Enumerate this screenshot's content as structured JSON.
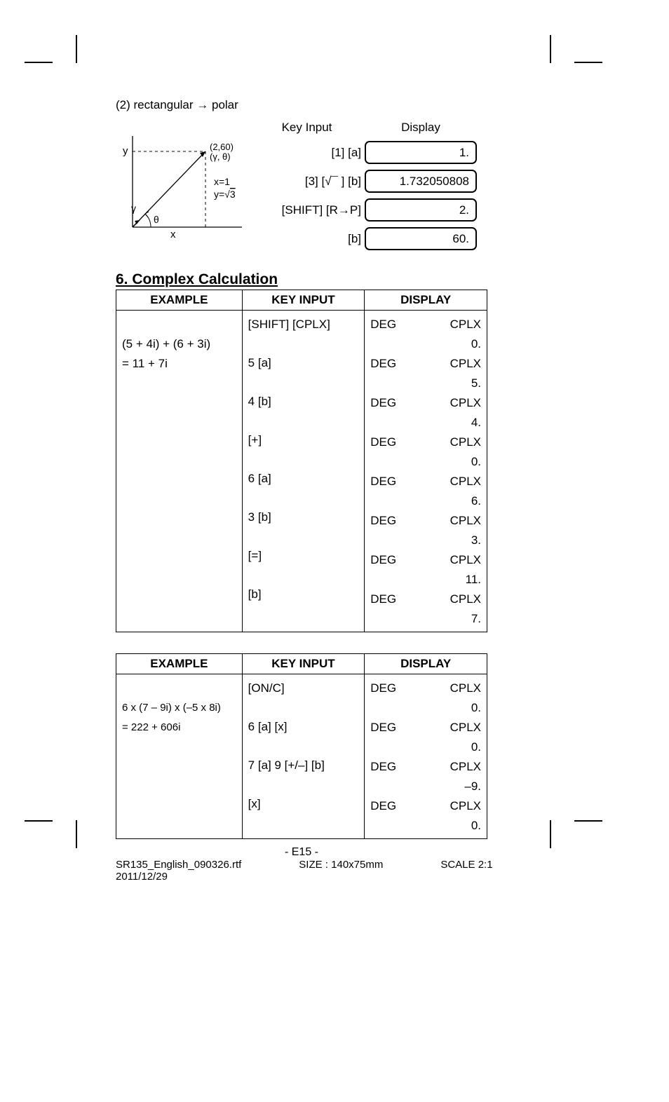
{
  "caption": "(2) rectangular → polar",
  "polar": {
    "key_input_header": "Key Input",
    "display_header": "Display",
    "rows": [
      {
        "key": "[1] [a]",
        "display": "1."
      },
      {
        "key": "[3] [√¯ ] [b]",
        "display": "1.732050808"
      },
      {
        "key": "[SHIFT] [R→P]",
        "display": "2."
      },
      {
        "key": "[b]",
        "display": "60."
      }
    ],
    "diagram": {
      "y_label": "y",
      "x_label": "x",
      "point_label": "(2,60)",
      "point_sub": "(γ, θ)",
      "x_eq": "x=1",
      "y_eq": "y=√3̄",
      "gamma": "γ",
      "theta": "θ"
    }
  },
  "section_title": "6. Complex Calculation",
  "table1": {
    "headers": [
      "EXAMPLE",
      "KEY   INPUT",
      "DISPLAY"
    ],
    "example_lines": [
      "(5 + 4i) + (6 + 3i)",
      "= 11 + 7i"
    ],
    "rows": [
      {
        "key": "[SHIFT] [CPLX]",
        "deg": "DEG",
        "cplx": "CPLX",
        "val": "0."
      },
      {
        "key": "5 [a]",
        "deg": "DEG",
        "cplx": "CPLX",
        "val": "5."
      },
      {
        "key": "4 [b]",
        "deg": "DEG",
        "cplx": "CPLX",
        "val": "4."
      },
      {
        "key": "[+]",
        "deg": "DEG",
        "cplx": "CPLX",
        "val": "0."
      },
      {
        "key": "6 [a]",
        "deg": "DEG",
        "cplx": "CPLX",
        "val": "6."
      },
      {
        "key": "3 [b]",
        "deg": "DEG",
        "cplx": "CPLX",
        "val": "3."
      },
      {
        "key": "[=]",
        "deg": "DEG",
        "cplx": "CPLX",
        "val": "11."
      },
      {
        "key": "[b]",
        "deg": "DEG",
        "cplx": "CPLX",
        "val": "7."
      }
    ]
  },
  "table2": {
    "headers": [
      "EXAMPLE",
      "KEY   INPUT",
      "DISPLAY"
    ],
    "example_lines": [
      "6 x (7 – 9i) x (–5 x 8i)",
      "= 222 + 606i"
    ],
    "rows": [
      {
        "key": "[ON/C]",
        "deg": "DEG",
        "cplx": "CPLX",
        "val": "0."
      },
      {
        "key": "6 [a] [x]",
        "deg": "DEG",
        "cplx": "CPLX",
        "val": "0."
      },
      {
        "key": "7 [a] 9 [+/–] [b]",
        "deg": "DEG",
        "cplx": "CPLX",
        "val": "–9."
      },
      {
        "key": "[x]",
        "deg": "DEG",
        "cplx": "CPLX",
        "val": "0."
      }
    ]
  },
  "page_number": "- E15 -",
  "footer": {
    "filename": "SR135_English_090326.rtf",
    "size": "SIZE   :   140x75mm",
    "scale": "SCALE   2:1",
    "date": "2011/12/29"
  }
}
